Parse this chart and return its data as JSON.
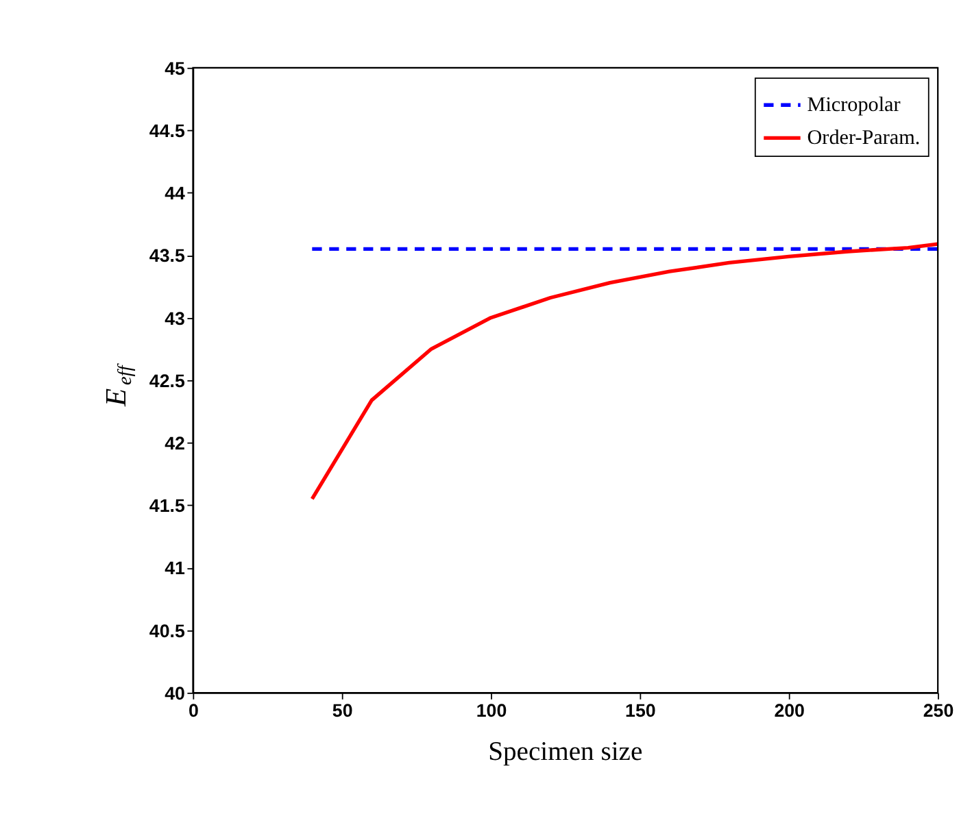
{
  "chart_data": {
    "type": "line",
    "xlabel": "Specimen size",
    "ylabel": "E$_{eff}$",
    "xlim": [
      0,
      250
    ],
    "xticks": [
      0,
      50,
      100,
      150,
      200,
      250
    ],
    "ylim": [
      40,
      45
    ],
    "yticks": [
      40,
      40.5,
      41,
      41.5,
      42,
      42.5,
      43,
      43.5,
      44,
      44.5,
      45
    ],
    "grid": false,
    "legend": "top right",
    "marker": "none",
    "series": [
      {
        "name": "Micropolar",
        "color": "#0000ff",
        "line_style": "dashed",
        "x": [
          40,
          250
        ],
        "values": [
          43.55,
          43.55
        ]
      },
      {
        "name": "Order-Param.",
        "color": "#ff0000",
        "line_style": "solid",
        "x": [
          40,
          60,
          80,
          100,
          120,
          140,
          160,
          180,
          200,
          220,
          240,
          250
        ],
        "values": [
          41.55,
          42.34,
          42.75,
          43.0,
          43.16,
          43.28,
          43.37,
          43.44,
          43.49,
          43.53,
          43.56,
          43.59
        ]
      }
    ]
  }
}
